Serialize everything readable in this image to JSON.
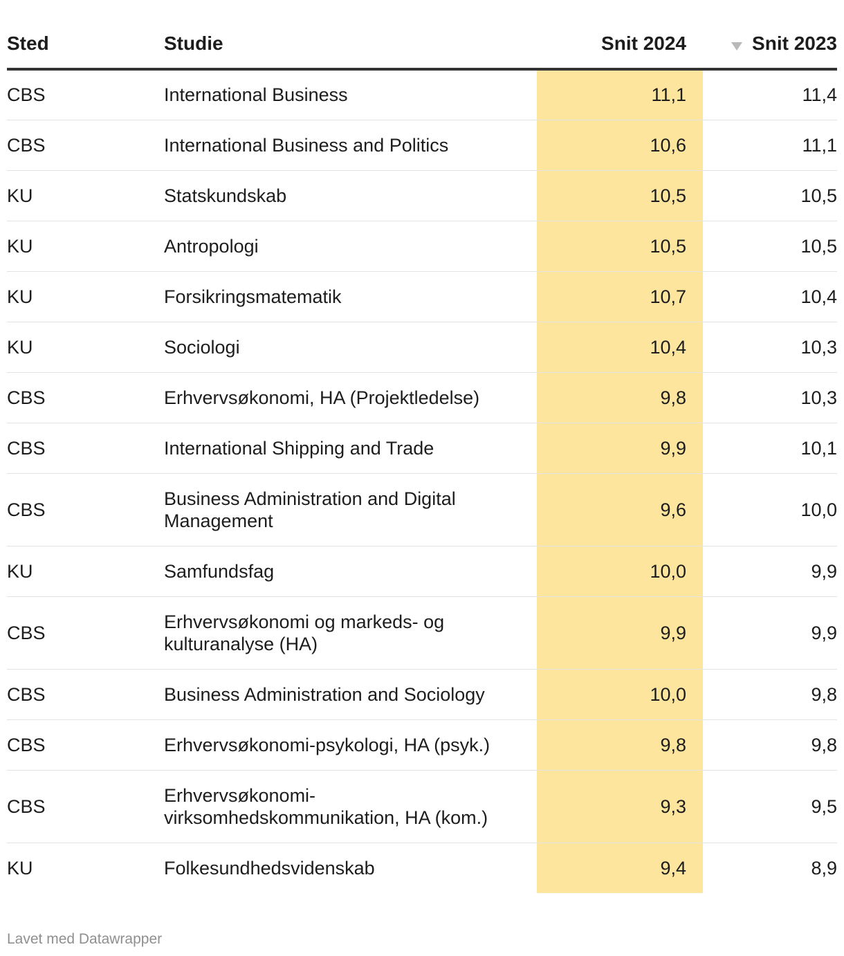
{
  "chart_data": {
    "type": "table",
    "columns": [
      "Sted",
      "Studie",
      "Snit 2024",
      "Snit 2023"
    ],
    "sorted_column": "Snit 2023",
    "sort_direction": "descending",
    "highlight_color": "#fde59e",
    "rows": [
      {
        "sted": "CBS",
        "studie": "International Business",
        "snit_2024": "11,1",
        "snit_2023": "11,4"
      },
      {
        "sted": "CBS",
        "studie": "International Business and Politics",
        "snit_2024": "10,6",
        "snit_2023": "11,1"
      },
      {
        "sted": "KU",
        "studie": "Statskundskab",
        "snit_2024": "10,5",
        "snit_2023": "10,5"
      },
      {
        "sted": "KU",
        "studie": "Antropologi",
        "snit_2024": "10,5",
        "snit_2023": "10,5"
      },
      {
        "sted": "KU",
        "studie": "Forsikringsmatematik",
        "snit_2024": "10,7",
        "snit_2023": "10,4"
      },
      {
        "sted": "KU",
        "studie": "Sociologi",
        "snit_2024": "10,4",
        "snit_2023": "10,3"
      },
      {
        "sted": "CBS",
        "studie": "Erhvervsøkonomi, HA (Projektledelse)",
        "snit_2024": "9,8",
        "snit_2023": "10,3"
      },
      {
        "sted": "CBS",
        "studie": "International Shipping and Trade",
        "snit_2024": "9,9",
        "snit_2023": "10,1"
      },
      {
        "sted": "CBS",
        "studie": "Business Administration and Digital Management",
        "snit_2024": "9,6",
        "snit_2023": "10,0"
      },
      {
        "sted": "KU",
        "studie": "Samfundsfag",
        "snit_2024": "10,0",
        "snit_2023": "9,9"
      },
      {
        "sted": "CBS",
        "studie": "Erhvervsøkonomi og markeds- og kulturanalyse (HA)",
        "snit_2024": "9,9",
        "snit_2023": "9,9"
      },
      {
        "sted": "CBS",
        "studie": "Business Administration and Sociology",
        "snit_2024": "10,0",
        "snit_2023": "9,8"
      },
      {
        "sted": "CBS",
        "studie": "Erhvervsøkonomi-psykologi, HA (psyk.)",
        "snit_2024": "9,8",
        "snit_2023": "9,8"
      },
      {
        "sted": "CBS",
        "studie": "Erhvervsøkonomi-virksomhedskommunikation, HA (kom.)",
        "snit_2024": "9,3",
        "snit_2023": "9,5"
      },
      {
        "sted": "KU",
        "studie": "Folkesundhedsvidenskab",
        "snit_2024": "9,4",
        "snit_2023": "8,9"
      }
    ]
  },
  "sort_icon": "sort-descending-icon",
  "footer": {
    "credit": "Lavet med Datawrapper"
  }
}
